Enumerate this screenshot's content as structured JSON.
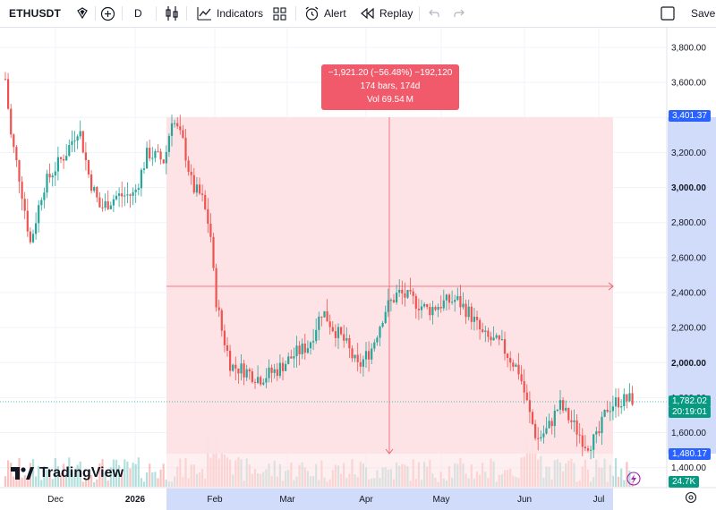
{
  "toolbar": {
    "symbol": "ETHUSDT",
    "interval": "D",
    "indicators": "Indicators",
    "alert": "Alert",
    "replay": "Replay",
    "save": "Save"
  },
  "price_axis": {
    "ticks": [
      "3,800.00",
      "3,600.00",
      "3,400.00",
      "3,200.00",
      "3,000.00",
      "2,800.00",
      "2,600.00",
      "2,400.00",
      "2,200.00",
      "2,000.00",
      "1,800.00",
      "1,600.00",
      "1,400.00"
    ],
    "bold_ticks": [
      "3,000.00",
      "2,000.00"
    ]
  },
  "date_axis": {
    "labels": [
      "Dec",
      "2026",
      "Feb",
      "Mar",
      "Apr",
      "May",
      "Jun",
      "Jul"
    ],
    "bold_labels": [
      "2026"
    ]
  },
  "price_tags": {
    "measure_top": "3,401.37",
    "last_price": "1,782.02",
    "countdown": "20:19:01",
    "measure_bottom": "1,480.17",
    "volume": "24.7K"
  },
  "measure": {
    "line1": "−1,921.20 (−56.48%) −192,120",
    "line2": "174 bars, 174d",
    "line3": "Vol 69.54 M"
  },
  "brand": {
    "name": "TradingView"
  },
  "colors": {
    "up": "#26a69a",
    "down": "#ef5350",
    "measure_fill": "#fde2e4",
    "measure_accent": "#f05a6a",
    "highlight_axis": "#d1dcfa",
    "tag_blue": "#2962ff",
    "tag_green": "#089981"
  },
  "icons": [
    "favorite-icon",
    "add-symbol-icon",
    "candles-icon",
    "indicators-icon",
    "templates-icon",
    "alert-icon",
    "replay-icon",
    "undo-icon",
    "redo-icon",
    "fullscreen-icon",
    "settings-icon",
    "lightning-icon"
  ]
}
